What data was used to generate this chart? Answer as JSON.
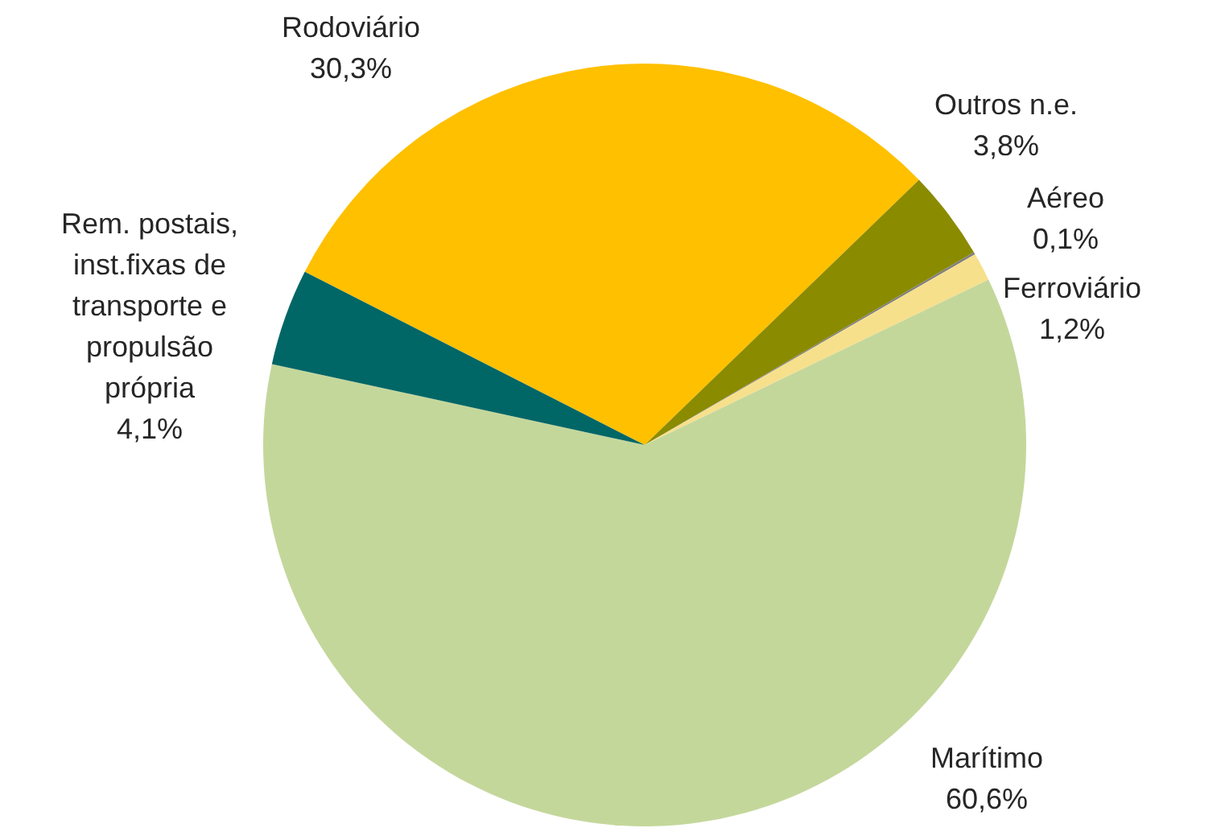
{
  "chart_data": {
    "type": "pie",
    "categories": [
      "Rodoviário",
      "Outros n.e.",
      "Aéreo",
      "Ferroviário",
      "Marítimo",
      "Rem. postais, inst.fixas de transporte e propulsão própria"
    ],
    "values": [
      30.3,
      3.8,
      0.1,
      1.2,
      60.6,
      4.1
    ],
    "value_labels": [
      "30,3%",
      "3,8%",
      "0,1%",
      "1,2%",
      "60,6%",
      "4,1%"
    ],
    "colors": [
      "#ffc000",
      "#8b8b00",
      "#7f7f7f",
      "#f7e08c",
      "#c4d79b",
      "#006666"
    ],
    "legend": false
  }
}
